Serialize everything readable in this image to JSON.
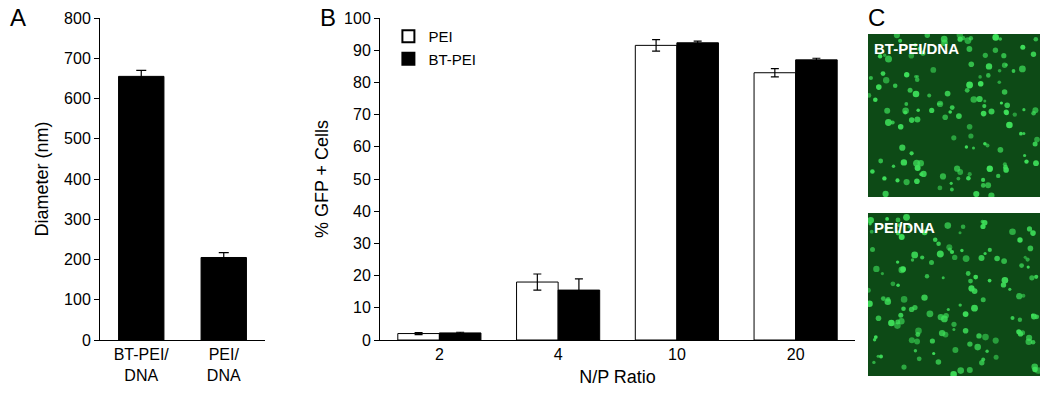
{
  "chart_data": [
    {
      "type": "bar",
      "title": "A",
      "categories": [
        "BT-PEI/DNA",
        "PEI/DNA"
      ],
      "values": [
        655,
        205
      ],
      "errors": [
        15,
        12
      ],
      "color": "#000000",
      "y_label": "Diameter (nm)",
      "ylim": [
        0,
        800
      ],
      "yticks": [
        0,
        100,
        200,
        300,
        400,
        500,
        600,
        700,
        800
      ],
      "grid": false
    },
    {
      "type": "bar",
      "title": "B",
      "x_label": "N/P Ratio",
      "y_label": "% GFP + Cells",
      "categories": [
        "2",
        "4",
        "10",
        "20"
      ],
      "series": [
        {
          "name": "PEI",
          "color": "#ffffff",
          "values": [
            2,
            18,
            91.5,
            83
          ],
          "errors": [
            0.3,
            2.5,
            1.8,
            1.3
          ]
        },
        {
          "name": "BT-PEI",
          "color": "#000000",
          "values": [
            2.2,
            15.5,
            92.3,
            87
          ],
          "errors": [
            0.2,
            3.5,
            0.5,
            0.5
          ]
        }
      ],
      "ylim": [
        0,
        100
      ],
      "yticks": [
        0,
        10,
        20,
        30,
        40,
        50,
        60,
        70,
        80,
        90,
        100
      ],
      "legend": "upper left",
      "grid": false
    },
    {
      "type": "image",
      "title": "C",
      "panels": [
        {
          "label": "BT-PEI/DNA",
          "color": "#3ee05a"
        },
        {
          "label": "PEI/DNA",
          "color": "#3ee05a"
        }
      ]
    }
  ]
}
